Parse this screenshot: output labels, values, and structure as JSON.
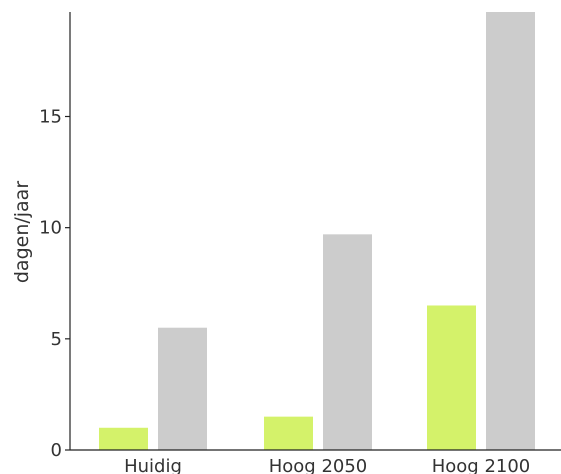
{
  "chart_data": {
    "type": "bar",
    "title": "",
    "xlabel": "",
    "ylabel": "dagen/jaar",
    "categories": [
      "Huidig",
      "Hoog 2050",
      "Hoog 2100"
    ],
    "series": [
      {
        "values": [
          1.0,
          1.5,
          6.5
        ],
        "color": "#d4f26a"
      },
      {
        "values": [
          5.5,
          9.7,
          19.7
        ],
        "color": "#cccccc"
      }
    ],
    "ylim": [
      0,
      19.7
    ],
    "yticks": [
      "0",
      "5",
      "10",
      "15"
    ],
    "grid": false,
    "legend": "none"
  }
}
